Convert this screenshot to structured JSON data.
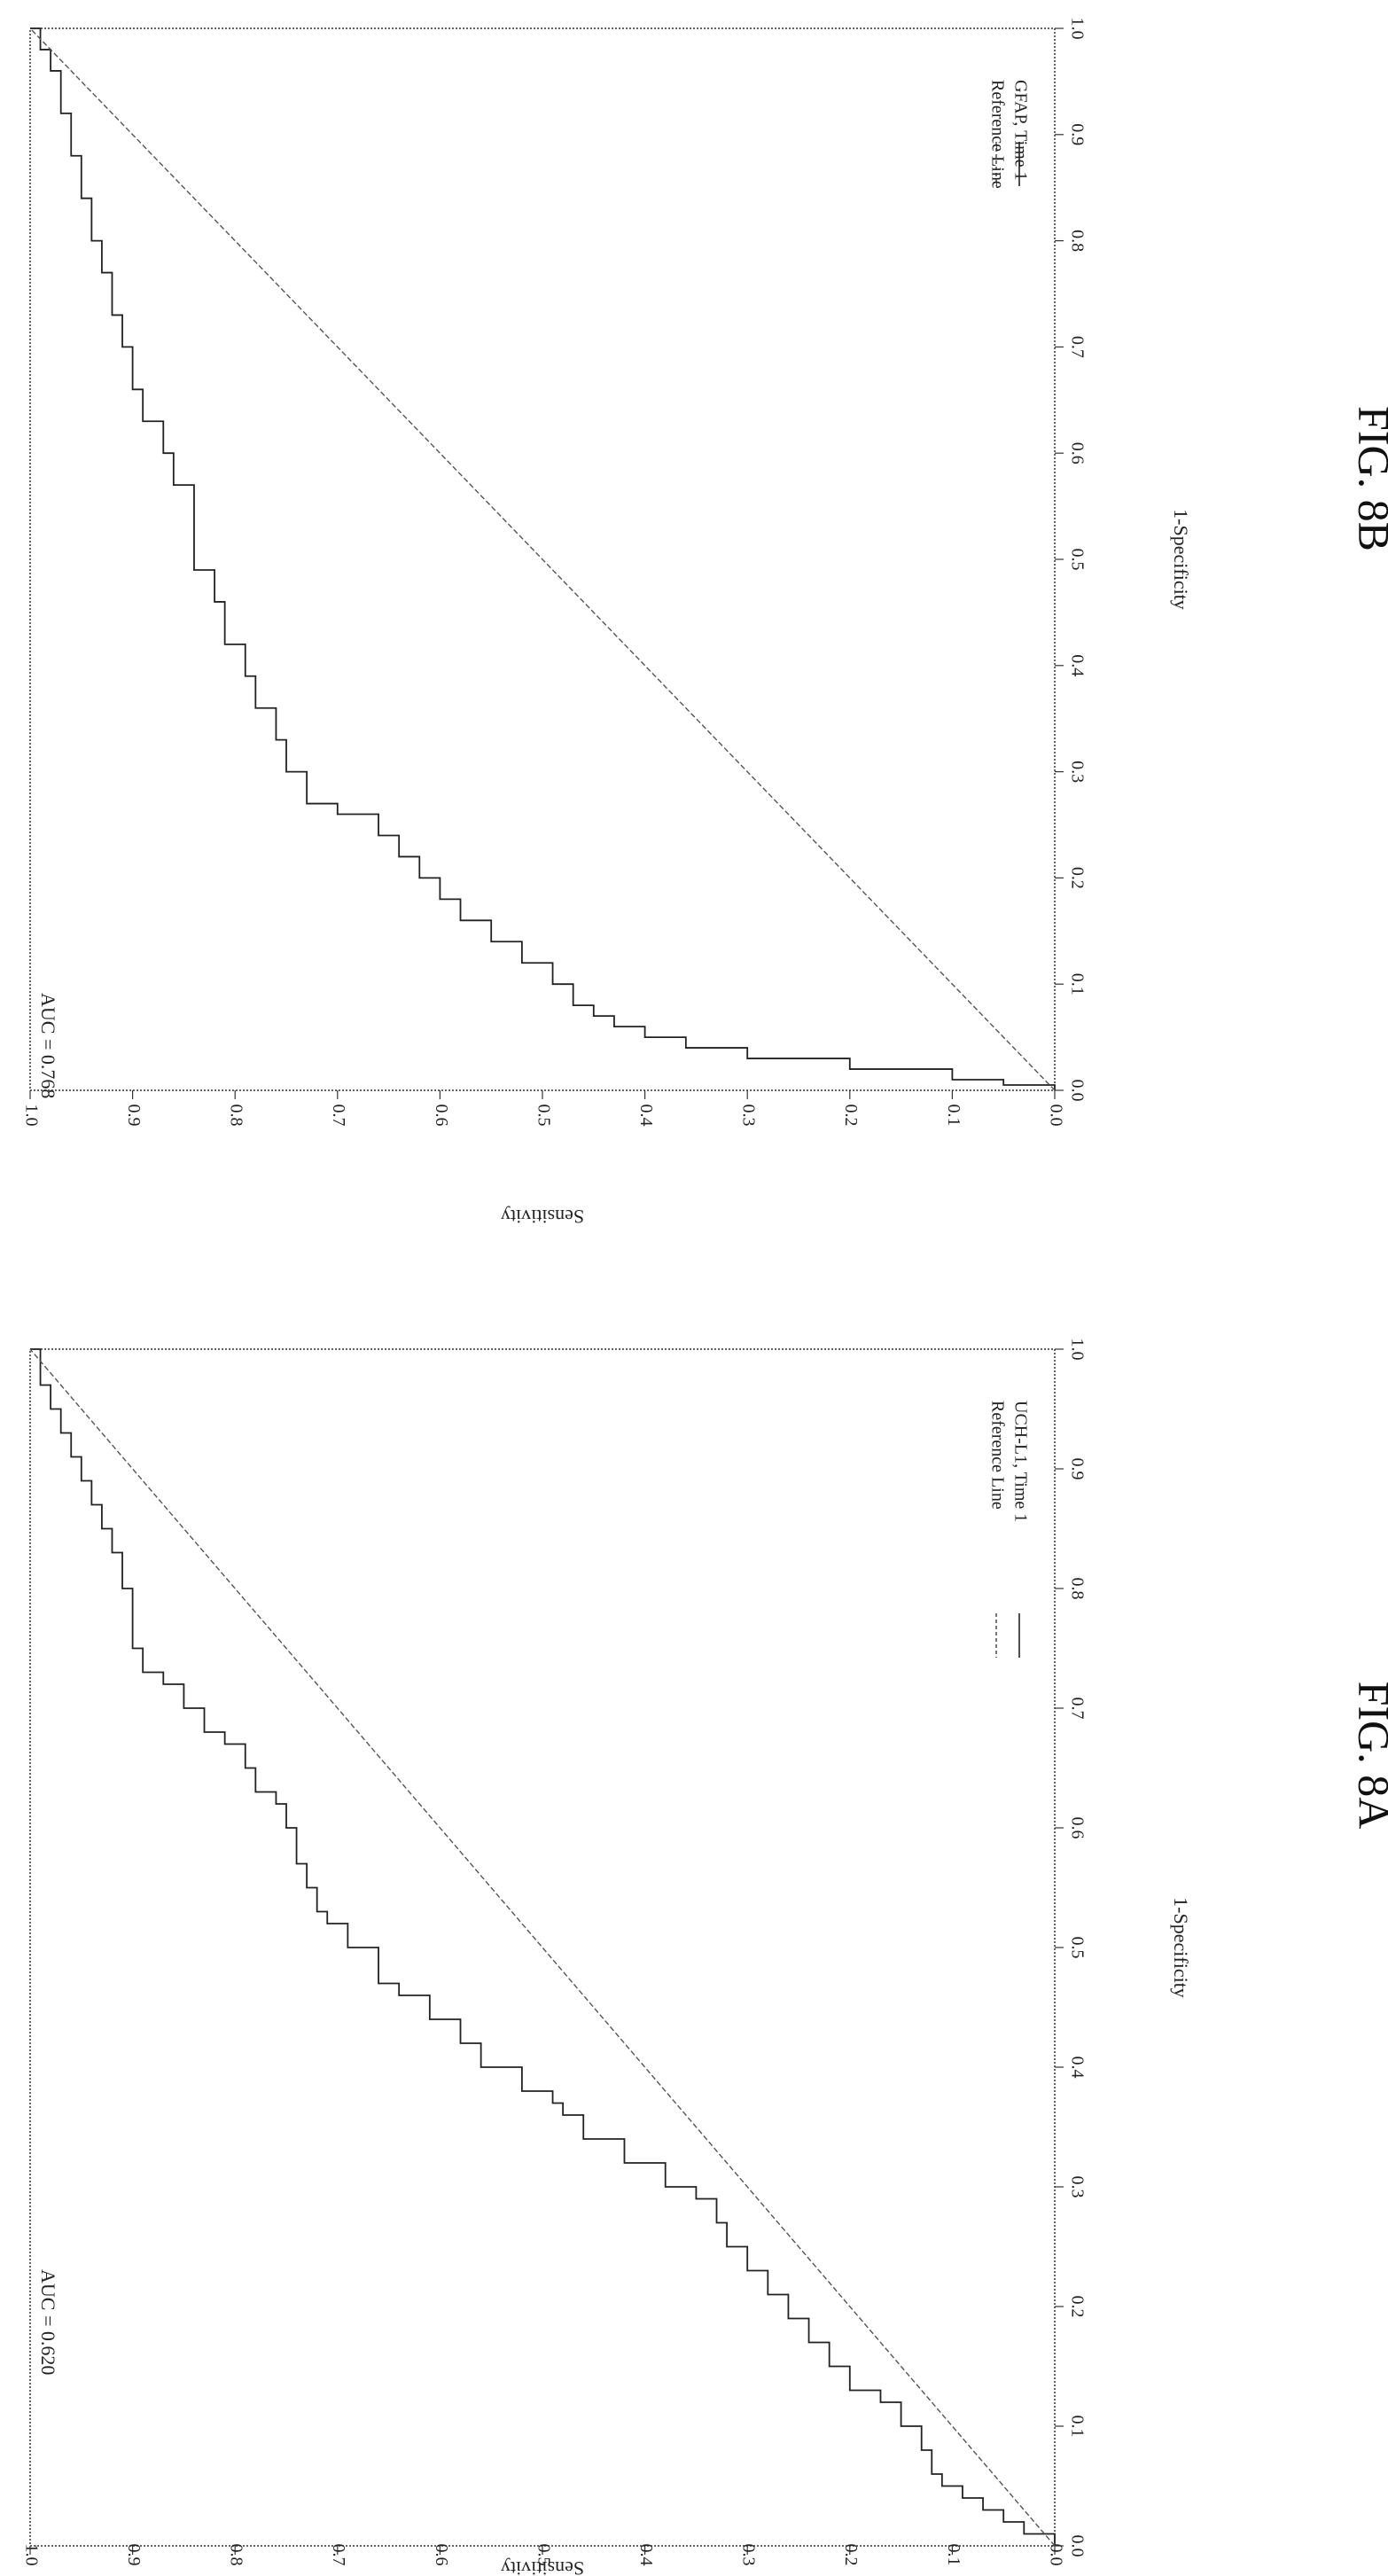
{
  "chart_data": [
    {
      "type": "line",
      "figure_label": "FIG. 8A",
      "annotation": "AUC = 0.620",
      "xlabel": "1-Specificity",
      "ylabel": "Sensitivity",
      "xlim": [
        0,
        1
      ],
      "ylim": [
        0,
        1
      ],
      "xticks": [
        "0.0",
        "0.1",
        "0.2",
        "0.3",
        "0.4",
        "0.5",
        "0.6",
        "0.7",
        "0.8",
        "0.9",
        "1.0"
      ],
      "yticks": [
        "0.0",
        "0.1",
        "0.2",
        "0.3",
        "0.4",
        "0.5",
        "0.6",
        "0.7",
        "0.8",
        "0.9",
        "1.0"
      ],
      "grid": false,
      "legend_position": "bottom-right",
      "series": [
        {
          "name": "UCH-L1, Time 1",
          "style": "solid",
          "x": [
            0,
            0.01,
            0.02,
            0.03,
            0.04,
            0.05,
            0.06,
            0.08,
            0.1,
            0.12,
            0.13,
            0.15,
            0.17,
            0.19,
            0.21,
            0.23,
            0.25,
            0.27,
            0.29,
            0.3,
            0.32,
            0.34,
            0.36,
            0.37,
            0.38,
            0.4,
            0.42,
            0.44,
            0.46,
            0.47,
            0.5,
            0.52,
            0.53,
            0.55,
            0.57,
            0.6,
            0.62,
            0.63,
            0.65,
            0.67,
            0.68,
            0.7,
            0.72,
            0.73,
            0.75,
            0.77,
            0.8,
            0.83,
            0.85,
            0.87,
            0.89,
            0.91,
            0.93,
            0.95,
            0.97,
            0.98,
            1
          ],
          "y": [
            0,
            0.03,
            0.05,
            0.07,
            0.09,
            0.11,
            0.12,
            0.13,
            0.15,
            0.17,
            0.2,
            0.22,
            0.24,
            0.26,
            0.28,
            0.3,
            0.32,
            0.33,
            0.35,
            0.38,
            0.42,
            0.46,
            0.48,
            0.49,
            0.52,
            0.56,
            0.58,
            0.61,
            0.64,
            0.66,
            0.69,
            0.71,
            0.72,
            0.73,
            0.74,
            0.75,
            0.76,
            0.78,
            0.79,
            0.81,
            0.83,
            0.85,
            0.87,
            0.89,
            0.9,
            0.9,
            0.91,
            0.92,
            0.93,
            0.94,
            0.95,
            0.96,
            0.97,
            0.98,
            0.99,
            0.99,
            1
          ]
        },
        {
          "name": "Reference Line",
          "style": "dotted",
          "x": [
            0,
            1
          ],
          "y": [
            0,
            1
          ]
        }
      ]
    },
    {
      "type": "line",
      "figure_label": "FIG. 8B",
      "annotation": "AUC = 0.768",
      "xlabel": "1-Specificity",
      "ylabel": "Sensitivity",
      "xlim": [
        0,
        1
      ],
      "ylim": [
        0,
        1
      ],
      "xticks": [
        "0.0",
        "0.1",
        "0.2",
        "0.3",
        "0.4",
        "0.5",
        "0.6",
        "0.7",
        "0.8",
        "0.9",
        "1.0"
      ],
      "yticks": [
        "0.0",
        "0.1",
        "0.2",
        "0.3",
        "0.4",
        "0.5",
        "0.6",
        "0.7",
        "0.8",
        "0.9",
        "1.0"
      ],
      "grid": false,
      "legend_position": "bottom-right",
      "series": [
        {
          "name": "GFAP, Time 1",
          "style": "solid",
          "x": [
            0,
            0.005,
            0.01,
            0.02,
            0.03,
            0.04,
            0.05,
            0.06,
            0.07,
            0.08,
            0.1,
            0.12,
            0.14,
            0.16,
            0.18,
            0.2,
            0.22,
            0.24,
            0.26,
            0.27,
            0.3,
            0.33,
            0.36,
            0.39,
            0.42,
            0.46,
            0.49,
            0.53,
            0.57,
            0.6,
            0.63,
            0.66,
            0.7,
            0.73,
            0.77,
            0.8,
            0.84,
            0.88,
            0.92,
            0.96,
            0.98,
            1
          ],
          "y": [
            0,
            0.05,
            0.1,
            0.2,
            0.3,
            0.36,
            0.4,
            0.43,
            0.45,
            0.47,
            0.49,
            0.52,
            0.55,
            0.58,
            0.6,
            0.62,
            0.64,
            0.66,
            0.7,
            0.73,
            0.75,
            0.76,
            0.78,
            0.79,
            0.81,
            0.82,
            0.84,
            0.84,
            0.86,
            0.87,
            0.89,
            0.9,
            0.91,
            0.92,
            0.93,
            0.94,
            0.95,
            0.96,
            0.97,
            0.98,
            0.99,
            1
          ]
        },
        {
          "name": "Reference Line",
          "style": "dotted",
          "x": [
            0,
            1
          ],
          "y": [
            0,
            1
          ]
        }
      ]
    }
  ]
}
